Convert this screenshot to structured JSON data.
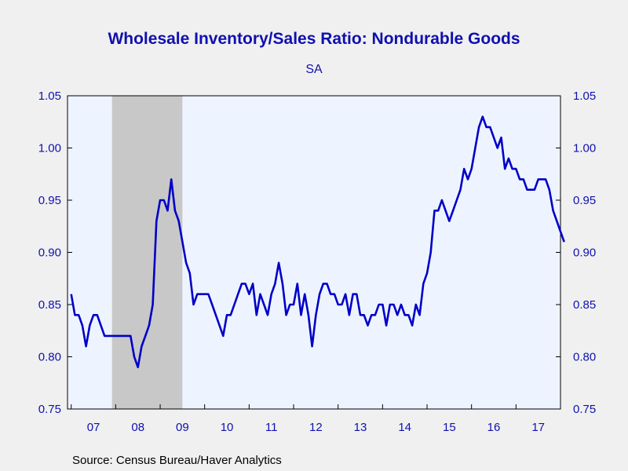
{
  "chart_data": {
    "type": "line",
    "title": "Wholesale Inventory/Sales Ratio: Nondurable Goods",
    "subtitle": "SA",
    "source": "Source:  Census Bureau/Haver Analytics",
    "xlabel": "",
    "ylabel": "",
    "ylim": [
      0.75,
      1.05
    ],
    "yticks": [
      "0.75",
      "0.80",
      "0.85",
      "0.90",
      "0.95",
      "1.00",
      "1.05"
    ],
    "xtick_labels": [
      "07",
      "08",
      "09",
      "10",
      "11",
      "12",
      "13",
      "14",
      "15",
      "16",
      "17"
    ],
    "grid": false,
    "recession_shading": {
      "start": "2007-12",
      "end": "2009-06",
      "color": "#c8c8c8"
    },
    "colors": {
      "line": "#0000c8",
      "text": "#1010b0",
      "plot_bg": "#eef4ff",
      "page_bg": "#f0f0f0"
    },
    "series": [
      {
        "start": "2007-01",
        "frequency": "monthly",
        "values": [
          0.86,
          0.84,
          0.84,
          0.83,
          0.81,
          0.83,
          0.84,
          0.84,
          0.83,
          0.82,
          0.82,
          0.82,
          0.82,
          0.82,
          0.82,
          0.82,
          0.82,
          0.8,
          0.79,
          0.81,
          0.82,
          0.83,
          0.85,
          0.93,
          0.95,
          0.95,
          0.94,
          0.97,
          0.94,
          0.93,
          0.91,
          0.89,
          0.88,
          0.85,
          0.86,
          0.86,
          0.86,
          0.86,
          0.85,
          0.84,
          0.83,
          0.82,
          0.84,
          0.84,
          0.85,
          0.86,
          0.87,
          0.87,
          0.86,
          0.87,
          0.84,
          0.86,
          0.85,
          0.84,
          0.86,
          0.87,
          0.89,
          0.87,
          0.84,
          0.85,
          0.85,
          0.87,
          0.84,
          0.86,
          0.84,
          0.81,
          0.84,
          0.86,
          0.87,
          0.87,
          0.86,
          0.86,
          0.85,
          0.85,
          0.86,
          0.84,
          0.86,
          0.86,
          0.84,
          0.84,
          0.83,
          0.84,
          0.84,
          0.85,
          0.85,
          0.83,
          0.85,
          0.85,
          0.84,
          0.85,
          0.84,
          0.84,
          0.83,
          0.85,
          0.84,
          0.87,
          0.88,
          0.9,
          0.94,
          0.94,
          0.95,
          0.94,
          0.93,
          0.94,
          0.95,
          0.96,
          0.98,
          0.97,
          0.98,
          1.0,
          1.02,
          1.03,
          1.02,
          1.02,
          1.01,
          1.0,
          1.01,
          0.98,
          0.99,
          0.98,
          0.98,
          0.97,
          0.97,
          0.96,
          0.96,
          0.96,
          0.97,
          0.97,
          0.97,
          0.96,
          0.94,
          0.93,
          0.92,
          0.91
        ]
      }
    ]
  }
}
